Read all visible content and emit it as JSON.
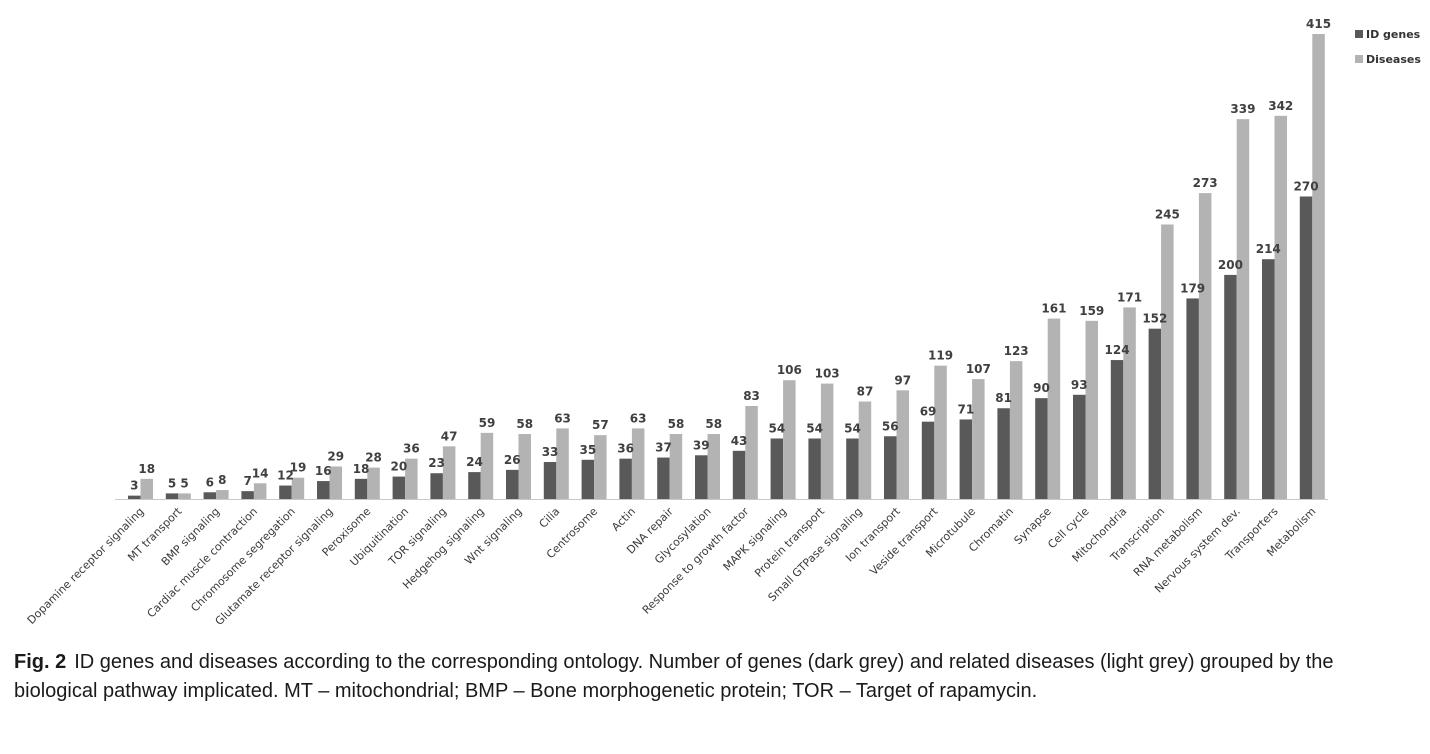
{
  "chart_data": {
    "type": "bar",
    "title": "",
    "xlabel": "",
    "ylabel": "",
    "ylim": [
      0,
      415
    ],
    "legend_position": "top-right",
    "grid": false,
    "categories": [
      "Dopamine receptor signaling",
      "MT transport",
      "BMP signaling",
      "Cardiac muscle contraction",
      "Chromosome segregation",
      "Glutamate receptor signaling",
      "Peroxisome",
      "Ubiquitination",
      "TOR signaling",
      "Hedgehog signaling",
      "Wnt signaling",
      "Cilia",
      "Centrosome",
      "Actin",
      "DNA repair",
      "Glycosylation",
      "Response to growth factor",
      "MAPK signaling",
      "Protein transport",
      "Small GTPase signaling",
      "Ion transport",
      "Veside transport",
      "Microtubule",
      "Chromatin",
      "Synapse",
      "Cell cycle",
      "Mitochondria",
      "Transcription",
      "RNA metabolism",
      "Nervous system dev.",
      "Transporters",
      "Metabolism"
    ],
    "series": [
      {
        "name": "ID genes",
        "color": "#595959",
        "values": [
          3,
          5,
          6,
          7,
          12,
          16,
          18,
          20,
          23,
          24,
          26,
          33,
          35,
          36,
          37,
          39,
          43,
          54,
          54,
          54,
          56,
          69,
          71,
          81,
          90,
          93,
          124,
          152,
          179,
          200,
          214,
          270
        ]
      },
      {
        "name": "Diseases",
        "color": "#b3b3b3",
        "values": [
          18,
          5,
          8,
          14,
          19,
          29,
          28,
          36,
          47,
          59,
          58,
          63,
          57,
          63,
          58,
          58,
          83,
          106,
          103,
          87,
          97,
          119,
          107,
          123,
          161,
          159,
          171,
          245,
          273,
          339,
          342,
          415
        ]
      }
    ]
  },
  "caption": {
    "fig_label": "Fig. 2",
    "text": "ID genes and diseases according to the corresponding ontology. Number of genes (dark grey) and related diseases (light grey) grouped by the biological pathway implicated. MT – mitochondrial; BMP – Bone morphogenetic protein; TOR – Target of rapamycin."
  }
}
